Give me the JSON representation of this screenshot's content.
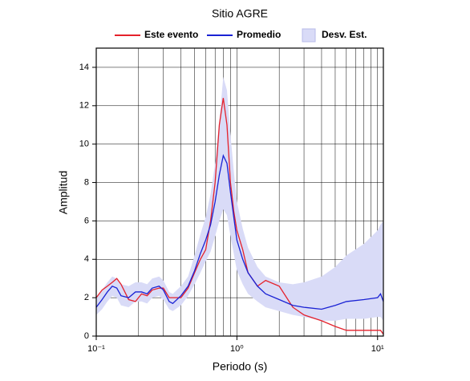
{
  "chart_data": {
    "type": "line",
    "title": "Sitio AGRE",
    "xlabel": "Periodo (s)",
    "ylabel": "Amplitud",
    "xscale": "log",
    "grid": true,
    "legend": "top",
    "xlim": [
      0.1,
      11
    ],
    "ylim": [
      0,
      15
    ],
    "xticks": [
      {
        "value": 0.1,
        "label": "10⁻¹"
      },
      {
        "value": 1,
        "label": "10⁰"
      },
      {
        "value": 10,
        "label": "10¹"
      }
    ],
    "yticks": [
      0,
      2,
      4,
      6,
      8,
      10,
      12,
      14
    ],
    "x": [
      0.1,
      0.11,
      0.12,
      0.13,
      0.14,
      0.15,
      0.17,
      0.19,
      0.21,
      0.23,
      0.25,
      0.28,
      0.3,
      0.33,
      0.35,
      0.4,
      0.45,
      0.5,
      0.55,
      0.6,
      0.65,
      0.7,
      0.75,
      0.8,
      0.85,
      0.9,
      0.95,
      1.0,
      1.1,
      1.2,
      1.4,
      1.6,
      2.0,
      2.5,
      3.0,
      4.0,
      5.0,
      6.0,
      8.0,
      10,
      10.5,
      11
    ],
    "band": {
      "name": "Desv. Est.",
      "color": "#d9dbf7",
      "upper": [
        2.0,
        2.4,
        2.8,
        3.1,
        3.0,
        2.7,
        2.6,
        2.8,
        2.8,
        2.7,
        3.0,
        3.1,
        2.9,
        2.3,
        2.2,
        2.6,
        3.1,
        4.2,
        5.3,
        6.2,
        7.4,
        9.0,
        11.2,
        13.5,
        12.8,
        10.5,
        8.6,
        7.0,
        5.6,
        4.6,
        3.6,
        3.1,
        2.8,
        2.7,
        2.8,
        3.1,
        3.6,
        4.2,
        4.8,
        5.5,
        5.8,
        6.0
      ],
      "lower": [
        1.1,
        1.4,
        1.8,
        2.1,
        2.0,
        1.6,
        1.5,
        1.8,
        1.8,
        1.7,
        2.0,
        2.1,
        1.9,
        1.4,
        1.3,
        1.6,
        2.1,
        2.7,
        3.3,
        3.9,
        4.4,
        5.2,
        6.0,
        6.6,
        6.3,
        5.2,
        4.3,
        3.4,
        2.7,
        2.2,
        1.8,
        1.5,
        1.3,
        1.1,
        1.0,
        0.8,
        0.8,
        0.9,
        0.9,
        1.0,
        1.0,
        0.8
      ]
    },
    "series": [
      {
        "name": "Este evento",
        "color": "#e5212b",
        "values": [
          2.0,
          2.4,
          2.6,
          2.8,
          3.0,
          2.7,
          1.9,
          1.8,
          2.2,
          2.1,
          2.4,
          2.5,
          2.5,
          2.0,
          2.0,
          2.0,
          2.5,
          3.3,
          4.0,
          4.5,
          6.0,
          8.0,
          11.0,
          12.4,
          11.0,
          8.0,
          6.5,
          5.5,
          4.5,
          3.3,
          2.6,
          2.9,
          2.6,
          1.5,
          1.1,
          0.8,
          0.5,
          0.3,
          0.3,
          0.3,
          0.3,
          0.1
        ]
      },
      {
        "name": "Promedio",
        "color": "#1a22d4",
        "values": [
          1.5,
          1.9,
          2.3,
          2.6,
          2.5,
          2.1,
          2.0,
          2.3,
          2.3,
          2.2,
          2.5,
          2.6,
          2.4,
          1.8,
          1.7,
          2.1,
          2.6,
          3.4,
          4.3,
          5.0,
          5.8,
          7.0,
          8.4,
          9.4,
          9.0,
          7.5,
          6.2,
          5.0,
          4.0,
          3.3,
          2.6,
          2.2,
          1.9,
          1.6,
          1.5,
          1.4,
          1.6,
          1.8,
          1.9,
          2.0,
          2.2,
          1.8
        ]
      }
    ]
  }
}
